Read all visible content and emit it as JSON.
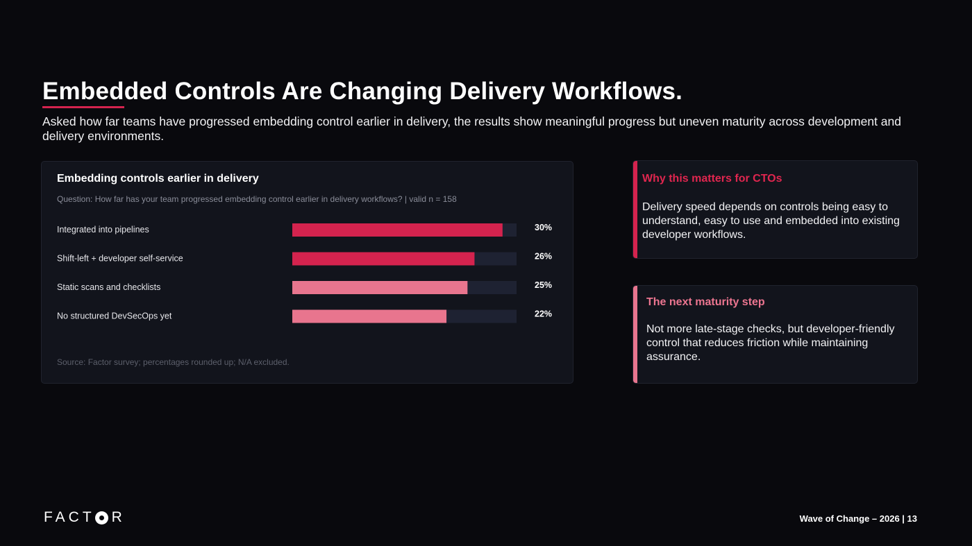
{
  "header": {
    "title": "Embedded Controls Are Changing Delivery Workflows.",
    "subtitle": "Asked how far teams have progressed embedding control earlier in delivery, the results show meaningful progress but uneven maturity across development and delivery environments."
  },
  "chart_data": {
    "type": "bar",
    "orientation": "horizontal",
    "title": "Embedding controls earlier in delivery",
    "question": "Question: How far has your team progressed embedding control earlier in delivery workflows? | valid n = 158",
    "categories": [
      "Integrated into pipelines",
      "Shift-left + developer self-service",
      "Static scans and checklists",
      "No structured DevSecOps yet"
    ],
    "values": [
      30,
      26,
      25,
      22
    ],
    "value_labels": [
      "30%",
      "26%",
      "25%",
      "22%"
    ],
    "xlim": [
      0,
      32
    ],
    "bar_colors": [
      "#d4234e",
      "#d4234e",
      "#e8758e",
      "#e8758e"
    ],
    "track_color": "#1e2232",
    "grid": false,
    "source": "Source: Factor survey; percentages rounded up; N/A excluded."
  },
  "callouts": [
    {
      "heading": "Why this matters for CTOs",
      "body": "Delivery speed depends on controls being easy to understand, easy to use and embedded into existing developer workflows.",
      "accent_color": "#d4234e"
    },
    {
      "heading": "The next maturity step",
      "body": "Not more late-stage checks, but developer-friendly control that reduces friction while maintaining assurance.",
      "accent_color": "#e8758e"
    }
  ],
  "footer": {
    "logo_text_1": "FACT",
    "logo_text_2": "R",
    "page_label": "Wave of Change – 2026 | 13"
  }
}
